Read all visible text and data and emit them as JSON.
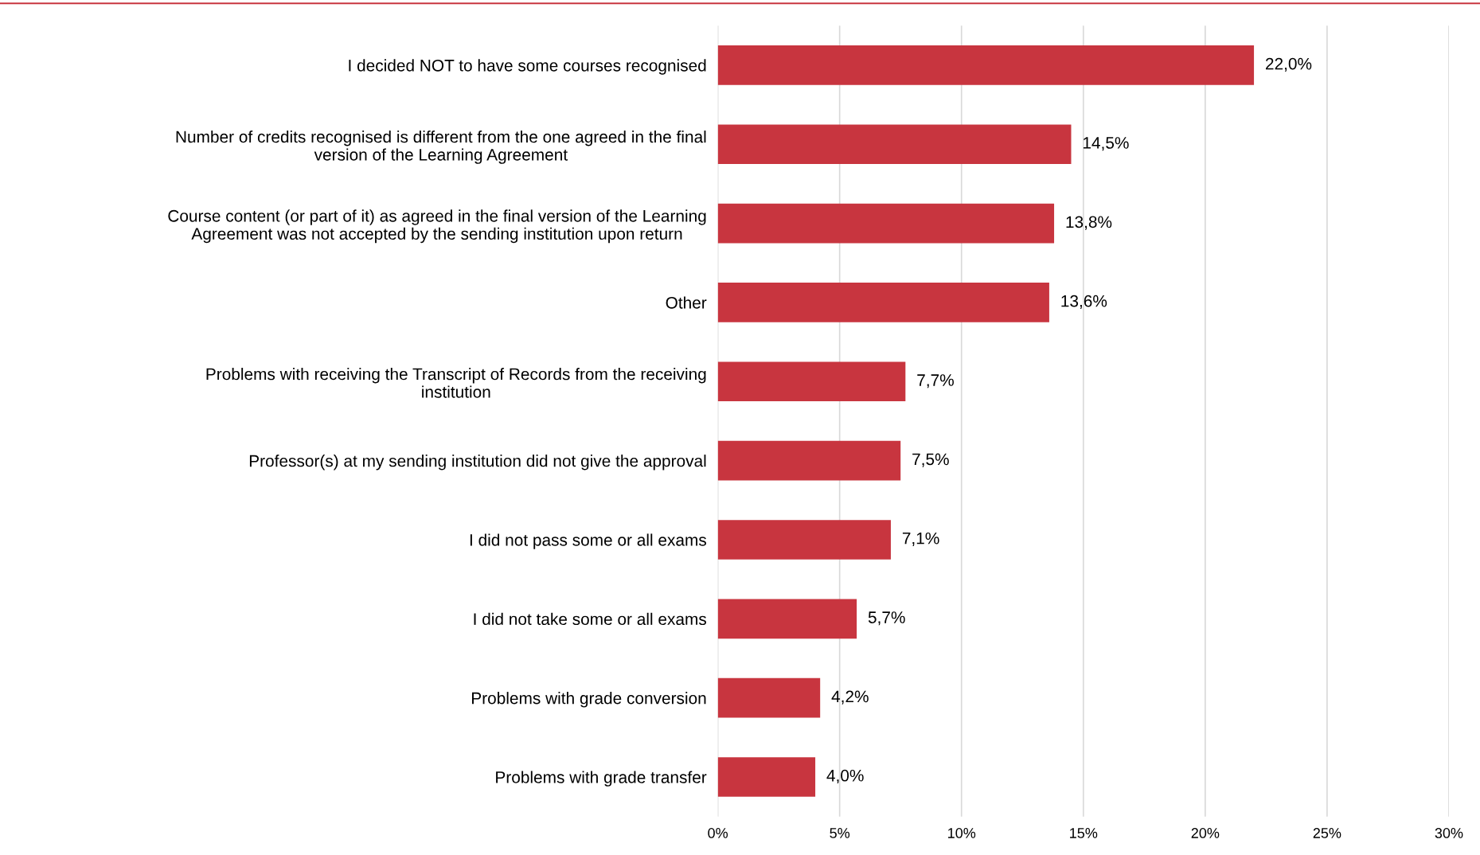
{
  "chart_data": {
    "type": "bar",
    "orientation": "horizontal",
    "categories": [
      "I decided NOT to have some courses recognised",
      "Number of credits recognised is different from the one agreed in the final\nversion of the Learning Agreement",
      "Course content (or part of it) as agreed in the final version of the Learning\nAgreement was not accepted by the sending institution upon return",
      "Other",
      "Problems with receiving the Transcript of Records from the receiving\ninstitution",
      "Professor(s) at my sending institution did not give the approval",
      "I did not pass some or all exams",
      "I did not take some or all exams",
      "Problems with grade conversion",
      "Problems with grade transfer"
    ],
    "values": [
      22.0,
      14.5,
      13.8,
      13.6,
      7.7,
      7.5,
      7.1,
      5.7,
      4.2,
      4.0
    ],
    "value_labels": [
      "22,0%",
      "14,5%",
      "13,8%",
      "13,6%",
      "7,7%",
      "7,5%",
      "7,1%",
      "5,7%",
      "4,2%",
      "4,0%"
    ],
    "color": "#c8353f",
    "xlim": [
      0,
      30
    ],
    "xticks": [
      {
        "value": 0,
        "label": "0%"
      },
      {
        "value": 5,
        "label": "5%"
      },
      {
        "value": 10,
        "label": "10%"
      },
      {
        "value": 15,
        "label": "15%"
      },
      {
        "value": 20,
        "label": "20%"
      },
      {
        "value": 25,
        "label": "25%"
      },
      {
        "value": 30,
        "label": "30%"
      }
    ],
    "grid": "x",
    "legend": false
  }
}
